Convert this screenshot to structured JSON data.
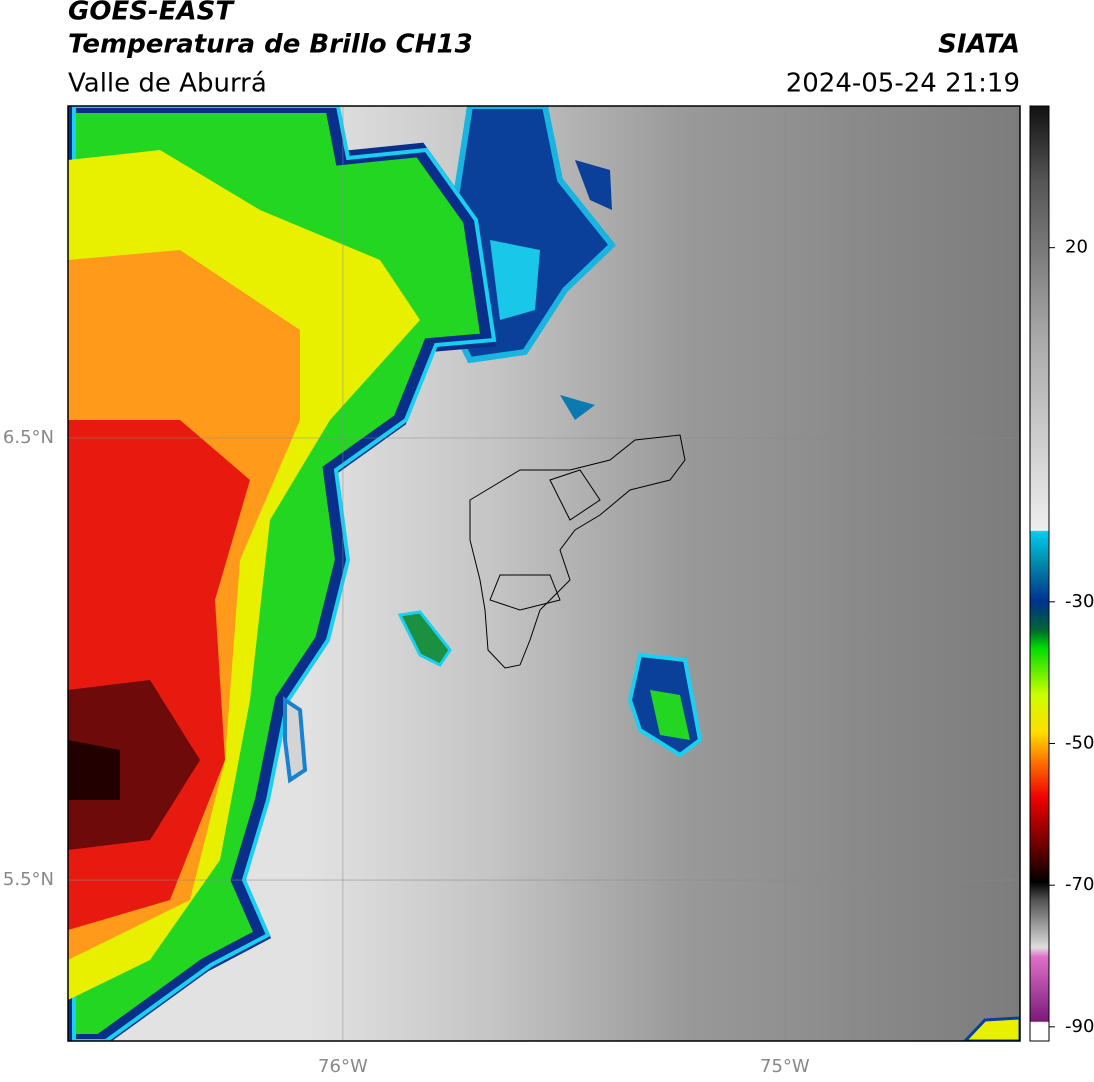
{
  "header": {
    "title": "GOES-EAST",
    "subtitle": "Temperatura de Brillo CH13",
    "region": "Valle de Aburrá",
    "source": "SIATA",
    "timestamp": "2024-05-24 21:19"
  },
  "map": {
    "lat_range": [
      5.136,
      7.251
    ],
    "lon_range": [
      -76.622,
      -74.468
    ],
    "lat_ticks": [
      {
        "value": 6.5,
        "label": "6.5°N"
      },
      {
        "value": 5.5,
        "label": "5.5°N"
      }
    ],
    "lon_ticks": [
      {
        "value": -76,
        "label": "76°W"
      },
      {
        "value": -75,
        "label": "75°W"
      }
    ]
  },
  "colorbar": {
    "range": [
      -92,
      40
    ],
    "ticks": [
      20,
      -30,
      -50,
      -70,
      -90
    ]
  }
}
